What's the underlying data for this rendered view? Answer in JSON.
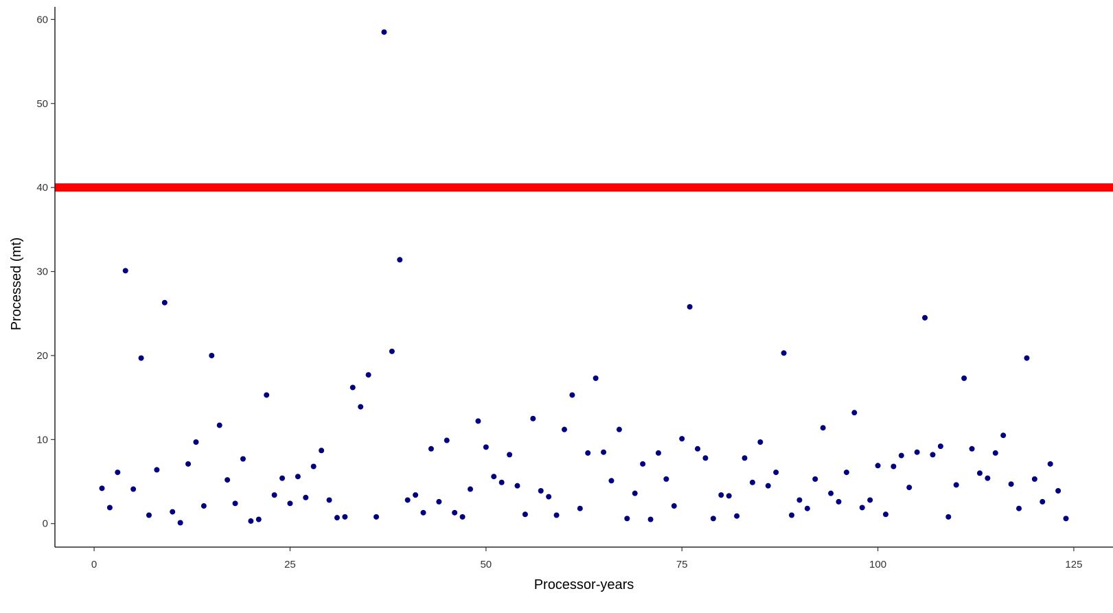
{
  "chart_data": {
    "type": "scatter",
    "xlabel": "Processor-years",
    "ylabel": "Processed (mt)",
    "xlim": [
      -5,
      130
    ],
    "ylim": [
      -2.8,
      61.5
    ],
    "xticks": [
      0,
      25,
      50,
      75,
      100,
      125
    ],
    "yticks": [
      0,
      10,
      20,
      30,
      40,
      50,
      60
    ],
    "grid": false,
    "point_color": "#000080",
    "reference_line": {
      "y": 40,
      "color": "#ff0000"
    },
    "series": [
      {
        "x": [
          1,
          2,
          3,
          4,
          5,
          6,
          7,
          8,
          9,
          10,
          11,
          12,
          13,
          14,
          15,
          16,
          17,
          18,
          19,
          20,
          21,
          22,
          23,
          24,
          25,
          26,
          27,
          28,
          29,
          30,
          31,
          32,
          33,
          34,
          35,
          36,
          37,
          38,
          39,
          40,
          41,
          42,
          43,
          44,
          45,
          46,
          47,
          48,
          49,
          50,
          51,
          52,
          53,
          54,
          55,
          56,
          57,
          58,
          59,
          60,
          61,
          62,
          63,
          64,
          65,
          66,
          67,
          68,
          69,
          70,
          71,
          72,
          73,
          74,
          75,
          76,
          77,
          78,
          79,
          80,
          81,
          82,
          83,
          84,
          85,
          86,
          87,
          88,
          89,
          90,
          91,
          92,
          93,
          94,
          95,
          96,
          97,
          98,
          99,
          100,
          101,
          102,
          103,
          104,
          105,
          106,
          107,
          108,
          109,
          110,
          111,
          112,
          113,
          114,
          115,
          116,
          117,
          118,
          119,
          120,
          121,
          122,
          123,
          124
        ],
        "y": [
          4.2,
          1.9,
          6.1,
          30.1,
          4.1,
          19.7,
          1.0,
          6.4,
          26.3,
          1.4,
          0.1,
          7.1,
          9.7,
          2.1,
          20.0,
          11.7,
          5.2,
          2.4,
          7.7,
          0.3,
          0.5,
          15.3,
          3.4,
          5.4,
          2.4,
          5.6,
          3.1,
          6.8,
          8.7,
          2.8,
          0.7,
          0.8,
          16.2,
          13.9,
          17.7,
          0.8,
          58.5,
          20.5,
          31.4,
          2.8,
          3.4,
          1.3,
          8.9,
          2.6,
          9.9,
          1.3,
          0.8,
          4.1,
          12.2,
          9.1,
          5.6,
          4.9,
          8.2,
          4.5,
          1.1,
          12.5,
          3.9,
          3.2,
          1.0,
          11.2,
          15.3,
          1.8,
          8.4,
          17.3,
          8.5,
          5.1,
          11.2,
          0.6,
          3.6,
          7.1,
          0.5,
          8.4,
          5.3,
          2.1,
          10.1,
          25.8,
          8.9,
          7.8,
          0.6,
          3.4,
          3.3,
          0.9,
          7.8,
          4.9,
          9.7,
          4.5,
          6.1,
          20.3,
          1.0,
          2.8,
          1.8,
          5.3,
          11.4,
          3.6,
          2.6,
          6.1,
          13.2,
          1.9,
          2.8,
          6.9,
          1.1,
          6.8,
          8.1,
          4.3,
          8.5,
          24.5,
          8.2,
          9.2,
          0.8,
          4.6,
          17.3,
          8.9,
          6.0,
          5.4,
          8.4,
          10.5,
          4.7,
          1.8,
          19.7,
          5.3,
          2.6,
          7.1,
          3.9,
          0.6
        ]
      }
    ]
  }
}
